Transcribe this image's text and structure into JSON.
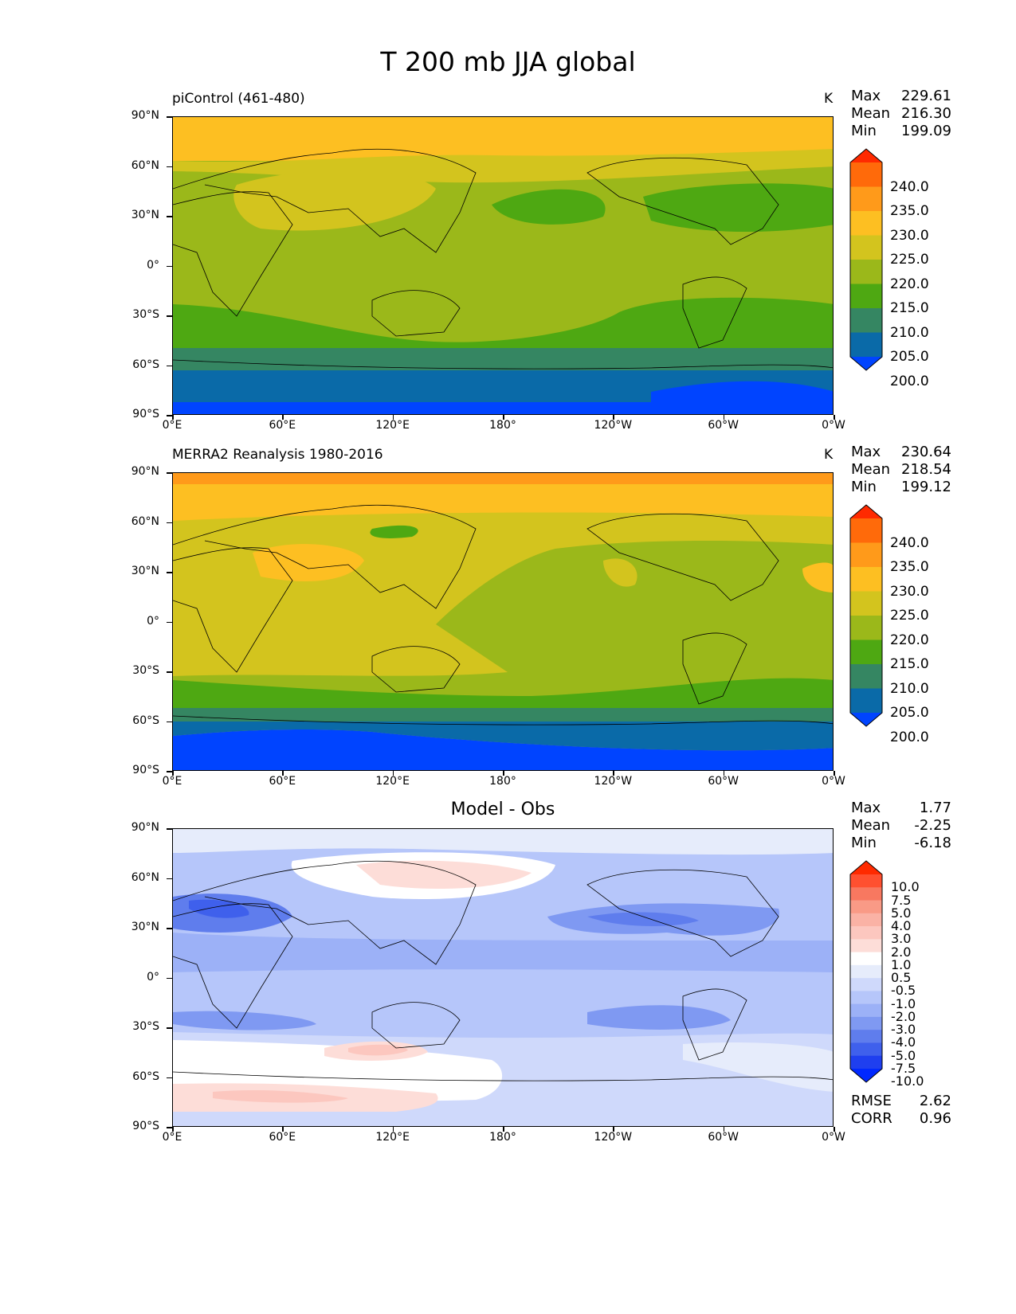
{
  "title": "T 200 mb JJA global",
  "panels": [
    {
      "label": "piControl (461-480)",
      "units": "K",
      "stats": [
        {
          "name": "Max",
          "value": "229.61"
        },
        {
          "name": "Mean",
          "value": "216.30"
        },
        {
          "name": "Min",
          "value": "199.09"
        }
      ],
      "colorbar": {
        "labels": [
          "240.0",
          "235.0",
          "230.0",
          "225.0",
          "220.0",
          "215.0",
          "210.0",
          "205.0",
          "200.0"
        ],
        "colors": [
          "#ff2a00",
          "#ff6a0a",
          "#ff9a1a",
          "#fdbf22",
          "#d3c41e",
          "#9bb81a",
          "#4ea812",
          "#358662",
          "#0a6aa8",
          "#0044ff"
        ]
      }
    },
    {
      "label": "MERRA2 Reanalysis 1980-2016",
      "units": "K",
      "stats": [
        {
          "name": "Max",
          "value": "230.64"
        },
        {
          "name": "Mean",
          "value": "218.54"
        },
        {
          "name": "Min",
          "value": "199.12"
        }
      ],
      "colorbar": {
        "labels": [
          "240.0",
          "235.0",
          "230.0",
          "225.0",
          "220.0",
          "215.0",
          "210.0",
          "205.0",
          "200.0"
        ],
        "colors": [
          "#ff2a00",
          "#ff6a0a",
          "#ff9a1a",
          "#fdbf22",
          "#d3c41e",
          "#9bb81a",
          "#4ea812",
          "#358662",
          "#0a6aa8",
          "#0044ff"
        ]
      }
    },
    {
      "label": "Model - Obs",
      "stats": [
        {
          "name": "Max",
          "value": "1.77"
        },
        {
          "name": "Mean",
          "value": "-2.25"
        },
        {
          "name": "Min",
          "value": "-6.18"
        }
      ],
      "colorbar": {
        "labels": [
          "10.0",
          "7.5",
          "5.0",
          "4.0",
          "3.0",
          "2.0",
          "1.0",
          "0.5",
          "-0.5",
          "-1.0",
          "-2.0",
          "-3.0",
          "-4.0",
          "-5.0",
          "-7.5",
          "-10.0"
        ],
        "colors": [
          "#ff2a00",
          "#ff5030",
          "#f87860",
          "#f99a86",
          "#fab2a5",
          "#fcc7bf",
          "#fdddd8",
          "#ffffff",
          "#e6ecfb",
          "#cfd9fb",
          "#b6c6fa",
          "#9cb1f7",
          "#7f99f2",
          "#5f7ded",
          "#3f60ec",
          "#1f3fef",
          "#0028ff"
        ]
      },
      "metrics": [
        {
          "name": "RMSE",
          "value": "2.62"
        },
        {
          "name": "CORR",
          "value": "0.96"
        }
      ]
    }
  ],
  "axes": {
    "lat_labels": [
      "90°N",
      "60°N",
      "30°N",
      "0°",
      "30°S",
      "60°S",
      "90°S"
    ],
    "lon_labels": [
      "0°E",
      "60°E",
      "120°E",
      "180°",
      "120°W",
      "60°W",
      "0°W"
    ]
  }
}
